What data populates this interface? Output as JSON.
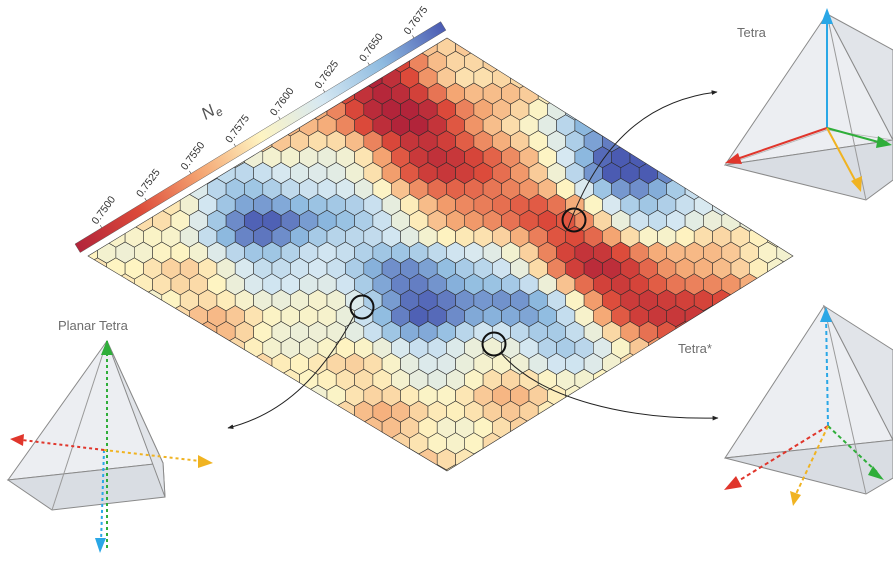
{
  "colorbar": {
    "title": "N",
    "title_sub": "e",
    "ticks": [
      "0.7500",
      "0.7525",
      "0.7550",
      "0.7575",
      "0.7600",
      "0.7625",
      "0.7650",
      "0.7675"
    ],
    "range": [
      0.7485,
      0.769
    ],
    "colors": [
      "#b2243a",
      "#dc4a3a",
      "#f4a471",
      "#fef4c2",
      "#d6e8f2",
      "#8ebbe0",
      "#4b5bb2"
    ]
  },
  "labels": {
    "tetra": "Tetra",
    "planar_tetra": "Planar Tetra",
    "tetra_star": "Tetra*"
  },
  "arrow_colors": {
    "blue": "#2aa7e6",
    "green": "#2fae3a",
    "red": "#e0362c",
    "yellow": "#f0b321"
  }
}
